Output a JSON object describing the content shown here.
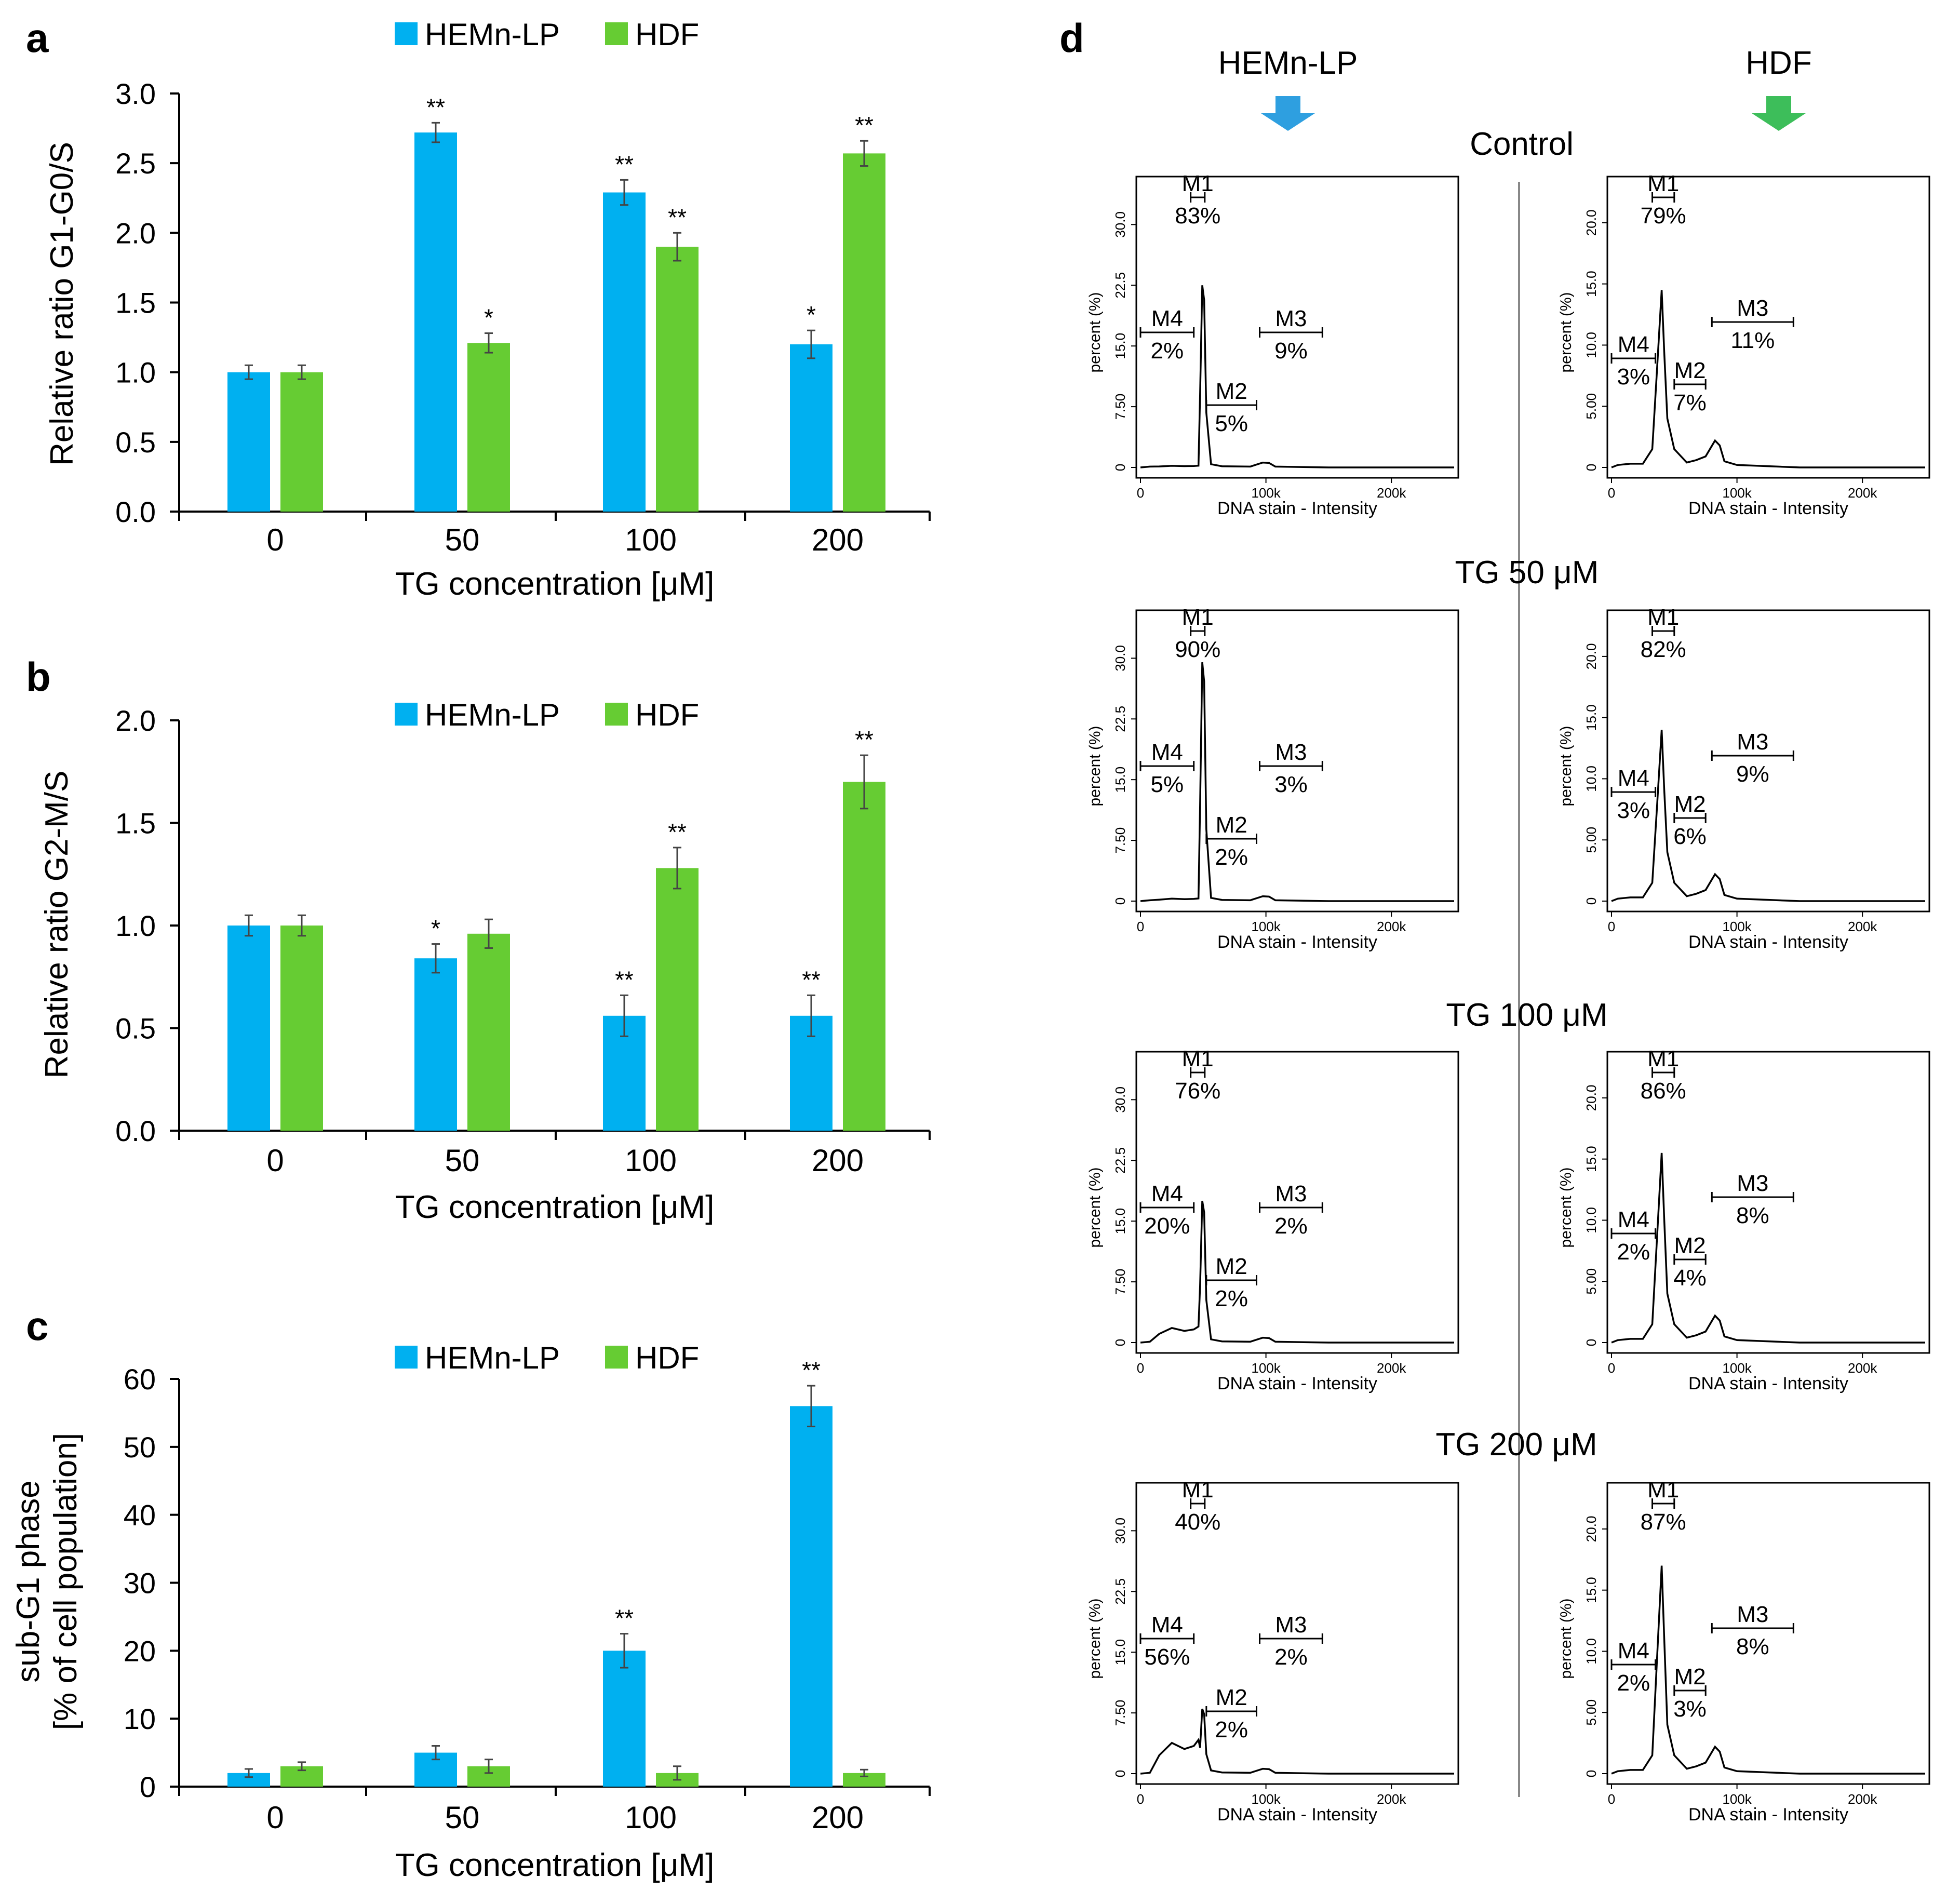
{
  "colors": {
    "hemn": "#00B0F0",
    "hdf": "#66CC33",
    "hemn_arrow": "#2E9FE0",
    "hdf_arrow": "#3DBE5A",
    "axis": "#000000",
    "err": "#444444"
  },
  "chart_data": [
    {
      "panel": "a",
      "type": "bar",
      "categories": [
        "0",
        "50",
        "100",
        "200"
      ],
      "series": [
        {
          "name": "HEMn-LP",
          "values": [
            1.0,
            2.72,
            2.29,
            1.2
          ],
          "errors": [
            0.05,
            0.07,
            0.09,
            0.1
          ],
          "sig": [
            "",
            "**",
            "**",
            "*"
          ]
        },
        {
          "name": "HDF",
          "values": [
            1.0,
            1.21,
            1.9,
            2.57
          ],
          "errors": [
            0.05,
            0.07,
            0.1,
            0.09
          ],
          "sig": [
            "",
            "*",
            "**",
            "**"
          ]
        }
      ],
      "xlabel": "TG concentration [μM]",
      "ylabel": "Relative  ratio G1-G0/S",
      "ylim": [
        0,
        3.0
      ],
      "ytick_step": 0.5,
      "ytick_decimals": 1,
      "legend": "top"
    },
    {
      "panel": "b",
      "type": "bar",
      "categories": [
        "0",
        "50",
        "100",
        "200"
      ],
      "series": [
        {
          "name": "HEMn-LP",
          "values": [
            1.0,
            0.84,
            0.56,
            0.56
          ],
          "errors": [
            0.05,
            0.07,
            0.1,
            0.1
          ],
          "sig": [
            "",
            "*",
            "**",
            "**"
          ]
        },
        {
          "name": "HDF",
          "values": [
            1.0,
            0.96,
            1.28,
            1.7
          ],
          "errors": [
            0.05,
            0.07,
            0.1,
            0.13
          ],
          "sig": [
            "",
            "",
            "**",
            "**"
          ]
        }
      ],
      "xlabel": "TG concentration [μM]",
      "ylabel": "Relative ratio G2-M/S",
      "ylim": [
        0,
        2.0
      ],
      "ytick_step": 0.5,
      "ytick_decimals": 1,
      "legend": "top"
    },
    {
      "panel": "c",
      "type": "bar",
      "categories": [
        "0",
        "50",
        "100",
        "200"
      ],
      "series": [
        {
          "name": "HEMn-LP",
          "values": [
            2,
            5,
            20,
            56
          ],
          "errors": [
            0.6,
            1.0,
            2.5,
            3.0
          ],
          "sig": [
            "",
            "",
            "**",
            "**"
          ]
        },
        {
          "name": "HDF",
          "values": [
            3,
            3,
            2,
            2
          ],
          "errors": [
            0.6,
            1.0,
            1.0,
            0.5
          ],
          "sig": [
            "",
            "",
            "",
            ""
          ]
        }
      ],
      "xlabel": "TG concentration [μM]",
      "ylabel_lines": [
        "sub-G1 phase",
        "[% of cell population]"
      ],
      "ylim": [
        0,
        60
      ],
      "ytick_step": 10,
      "ytick_decimals": 0,
      "legend": "top"
    },
    {
      "panel": "d",
      "type": "histogram",
      "column_headers": [
        "HEMn-LP",
        "HDF"
      ],
      "x_ticks": [
        "0",
        "100k",
        "200k"
      ],
      "x_label": "DNA stain - Intensity",
      "y_label": "percent (%)",
      "y_ticks_hemn": [
        "0",
        "7.50",
        "15.0",
        "22.5",
        "30.0"
      ],
      "y_ticks_hdf": [
        "0",
        "5.00",
        "10.0",
        "15.0",
        "20.0"
      ],
      "rows": [
        {
          "condition": "Control",
          "hemn": {
            "M1": "83%",
            "M2": "5%",
            "M3": "9%",
            "M4": "2%"
          },
          "hdf": {
            "M1": "79%",
            "M2": "7%",
            "M3": "11%",
            "M4": "3%"
          }
        },
        {
          "condition": "TG 50 μM",
          "hemn": {
            "M1": "90%",
            "M2": "2%",
            "M3": "3%",
            "M4": "5%"
          },
          "hdf": {
            "M1": "82%",
            "M2": "6%",
            "M3": "9%",
            "M4": "3%"
          }
        },
        {
          "condition": "TG 100 μM",
          "hemn": {
            "M1": "76%",
            "M2": "2%",
            "M3": "2%",
            "M4": "20%"
          },
          "hdf": {
            "M1": "86%",
            "M2": "4%",
            "M3": "8%",
            "M4": "2%"
          }
        },
        {
          "condition": "TG 200 μM",
          "hemn": {
            "M1": "40%",
            "M2": "2%",
            "M3": "2%",
            "M4": "56%"
          },
          "hdf": {
            "M1": "87%",
            "M2": "3%",
            "M3": "8%",
            "M4": "2%"
          }
        }
      ]
    }
  ],
  "panel_letters": [
    "a",
    "b",
    "c",
    "d"
  ],
  "marker_names": [
    "M1",
    "M2",
    "M3",
    "M4"
  ]
}
